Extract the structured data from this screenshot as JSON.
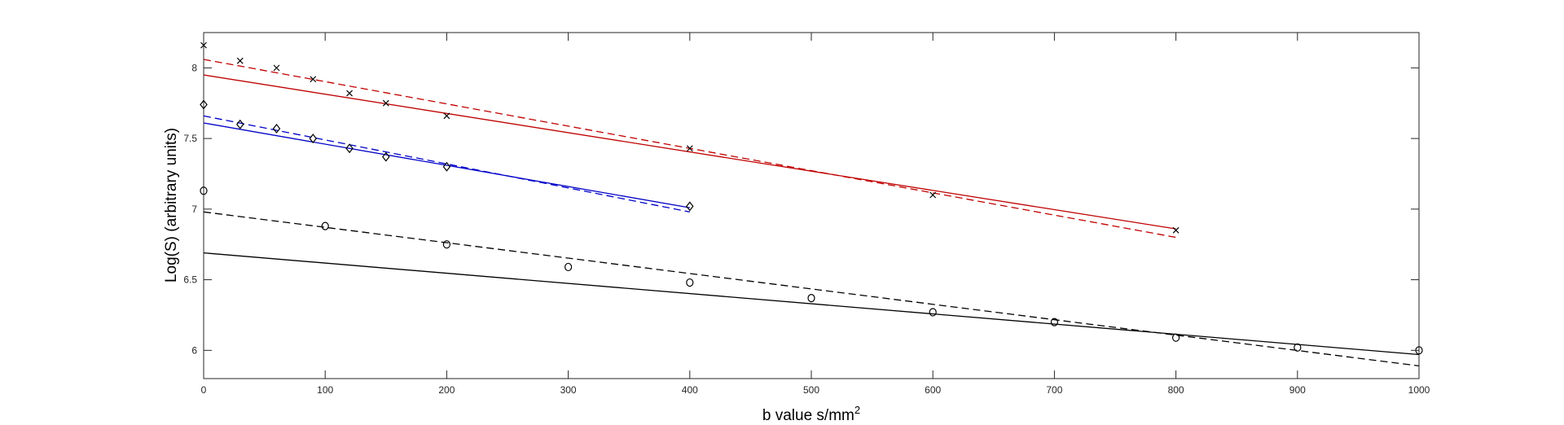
{
  "chart_data": {
    "type": "scatter",
    "title": "",
    "xlabel": "b value s/mm",
    "xlabel_superscript": "2",
    "ylabel": "Log(S) (arbitrary units)",
    "xlim": [
      0,
      1000
    ],
    "ylim": [
      5.8,
      8.25
    ],
    "xticks": [
      0,
      100,
      200,
      300,
      400,
      500,
      600,
      700,
      800,
      900,
      1000
    ],
    "yticks": [
      6,
      6.5,
      7,
      7.5,
      8
    ],
    "xtick_labels": [
      "0",
      "100",
      "200",
      "300",
      "400",
      "500",
      "600",
      "700",
      "800",
      "900",
      "1000"
    ],
    "ytick_labels": [
      "6",
      "6.5",
      "7",
      "7.5",
      "8"
    ],
    "grid": false,
    "legend": "none",
    "series": [
      {
        "marker": "x",
        "color": "#000000",
        "points": [
          [
            0,
            8.16
          ],
          [
            30,
            8.05
          ],
          [
            60,
            8.0
          ],
          [
            90,
            7.92
          ],
          [
            120,
            7.82
          ],
          [
            150,
            7.75
          ],
          [
            200,
            7.66
          ],
          [
            400,
            7.43
          ],
          [
            600,
            7.1
          ],
          [
            800,
            6.85
          ]
        ]
      },
      {
        "marker": "diamond",
        "color": "#000000",
        "points": [
          [
            0,
            7.74
          ],
          [
            30,
            7.6
          ],
          [
            60,
            7.57
          ],
          [
            90,
            7.5
          ],
          [
            120,
            7.43
          ],
          [
            150,
            7.37
          ],
          [
            200,
            7.3
          ],
          [
            400,
            7.02
          ]
        ]
      },
      {
        "marker": "circle",
        "color": "#000000",
        "points": [
          [
            0,
            7.13
          ],
          [
            100,
            6.88
          ],
          [
            200,
            6.75
          ],
          [
            300,
            6.59
          ],
          [
            400,
            6.48
          ],
          [
            500,
            6.37
          ],
          [
            600,
            6.27
          ],
          [
            700,
            6.2
          ],
          [
            800,
            6.09
          ],
          [
            900,
            6.02
          ],
          [
            1000,
            6.0
          ]
        ]
      }
    ],
    "fit_lines": [
      {
        "color": "#c00000",
        "style": "solid",
        "x": [
          0,
          800
        ],
        "y": [
          7.95,
          6.86
        ]
      },
      {
        "color": "#c00000",
        "style": "dashed",
        "x": [
          0,
          800
        ],
        "y": [
          8.06,
          6.8
        ]
      },
      {
        "color": "#0000c8",
        "style": "solid",
        "x": [
          0,
          400
        ],
        "y": [
          7.61,
          7.01
        ]
      },
      {
        "color": "#0000c8",
        "style": "dashed",
        "x": [
          0,
          400
        ],
        "y": [
          7.66,
          6.98
        ]
      },
      {
        "color": "#000000",
        "style": "solid",
        "x": [
          0,
          1000
        ],
        "y": [
          6.69,
          5.97
        ]
      },
      {
        "color": "#000000",
        "style": "dashed",
        "x": [
          0,
          1000
        ],
        "y": [
          6.98,
          5.89
        ]
      }
    ]
  }
}
